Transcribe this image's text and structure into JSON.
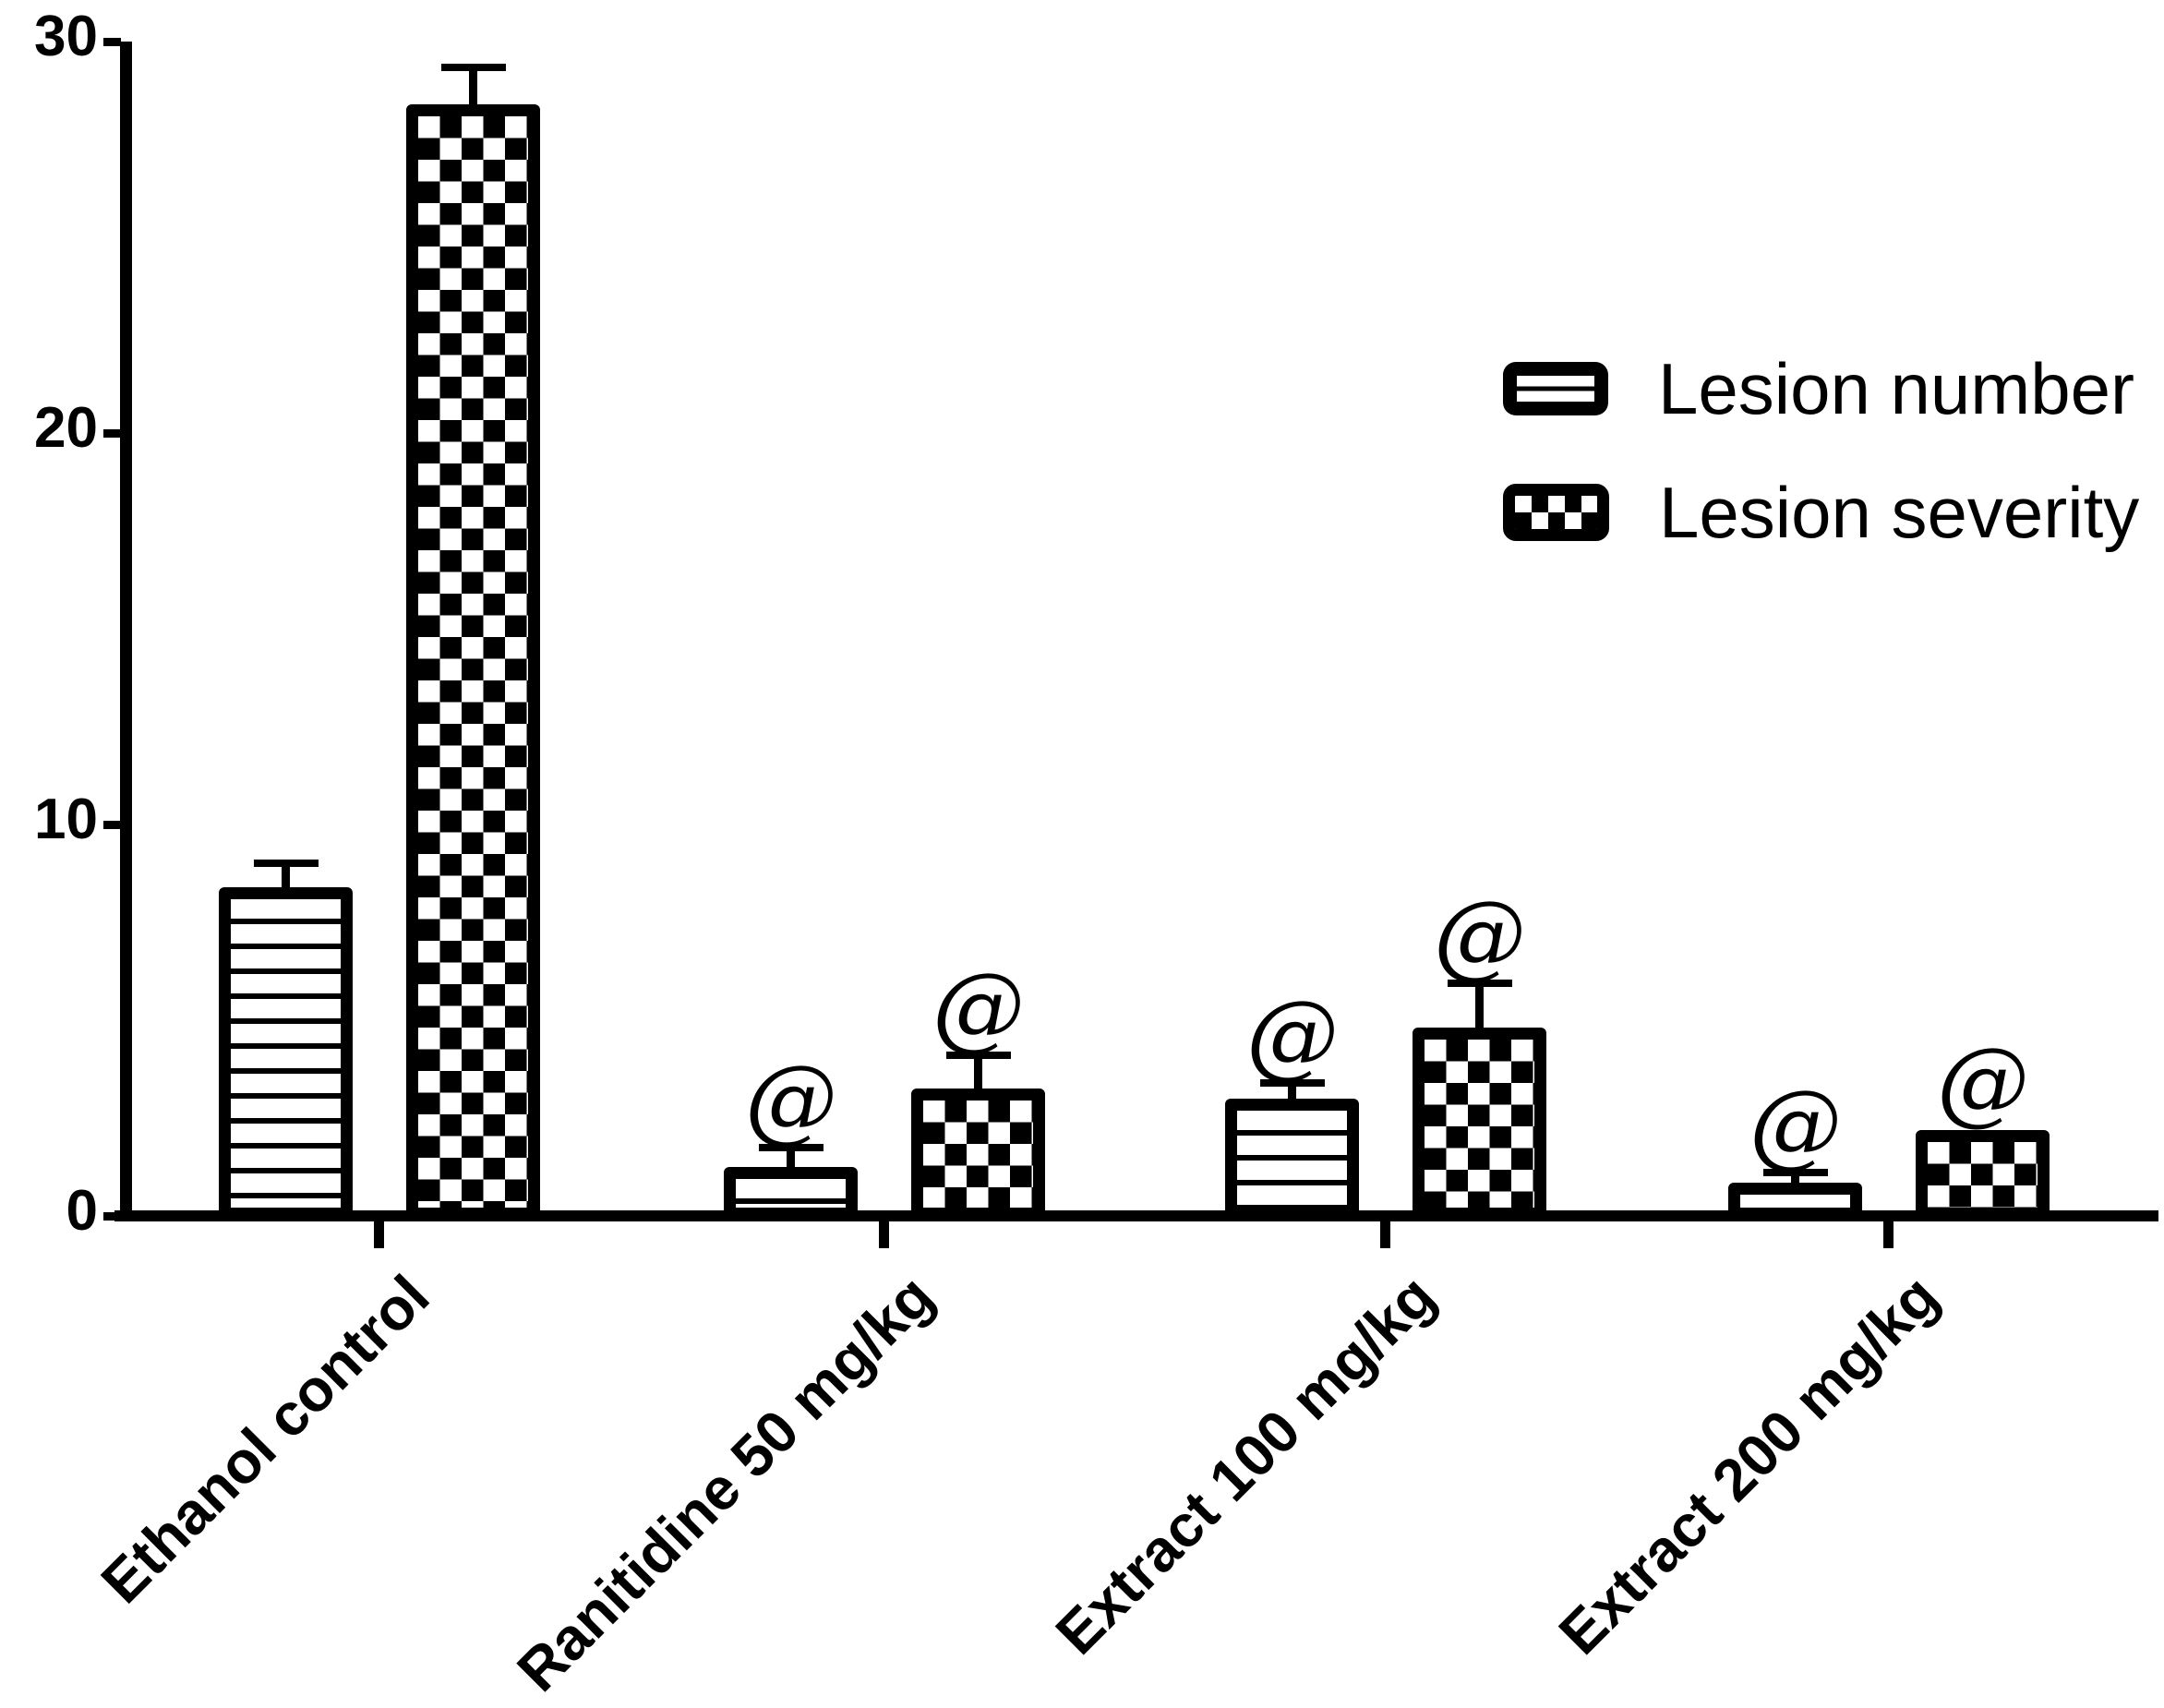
{
  "figure": {
    "background_color": "#ffffff",
    "ink_color": "#000000"
  },
  "y_axis": {
    "tick_labels": [
      "30",
      "20",
      "10",
      "0"
    ]
  },
  "legend": {
    "items": [
      {
        "label": "Lesion number",
        "pattern": "horizontal-stripes"
      },
      {
        "label": "Lesion severity",
        "pattern": "checkerboard"
      }
    ]
  },
  "chart_data": {
    "type": "bar",
    "title": "",
    "xlabel": "",
    "ylabel": "",
    "categories": [
      "Ethanol control",
      "Ranitidine 50 mg/kg",
      "Extract 100 mg/kg",
      "Extract 200 mg/kg"
    ],
    "series": [
      {
        "name": "Lesion number",
        "pattern": "horizontal-stripes",
        "values": [
          8.4,
          1.25,
          3.0,
          0.85
        ],
        "sem": [
          0.6,
          0.5,
          0.4,
          0.25
        ],
        "annotations": [
          "",
          "@",
          "@",
          "@"
        ]
      },
      {
        "name": "Lesion severity",
        "pattern": "checkerboard",
        "values": [
          28.4,
          3.25,
          4.8,
          2.2
        ],
        "sem": [
          0.95,
          0.85,
          1.15,
          0
        ],
        "annotations": [
          "",
          "@",
          "@",
          "@"
        ]
      }
    ],
    "error_bars": "mean + SEM, cap style T",
    "annotation_marker": "@",
    "ylim": [
      0,
      30
    ],
    "yticks": [
      0,
      10,
      20,
      30
    ],
    "grid": false,
    "legend_position": "upper right"
  }
}
